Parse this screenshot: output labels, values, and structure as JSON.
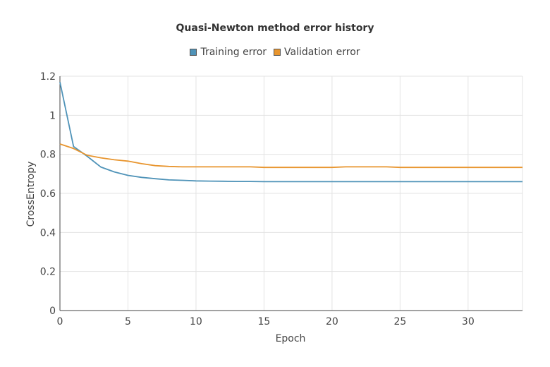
{
  "chart_data": {
    "type": "line",
    "title": "Quasi-Newton method error history",
    "xlabel": "Epoch",
    "ylabel": "CrossEntropy",
    "xlim": [
      0,
      34
    ],
    "ylim": [
      0,
      1.2
    ],
    "x_ticks": [
      "0",
      "5",
      "10",
      "15",
      "20",
      "25",
      "30"
    ],
    "y_ticks": [
      "0",
      "0.2",
      "0.4",
      "0.6",
      "0.8",
      "1",
      "1.2"
    ],
    "grid": true,
    "legend_position": "top-center",
    "series": [
      {
        "name": "Training error",
        "color": "#4f93b8",
        "x": [
          0,
          1,
          2,
          3,
          4,
          5,
          6,
          7,
          8,
          9,
          10,
          11,
          12,
          13,
          14,
          15,
          16,
          17,
          18,
          19,
          20,
          21,
          22,
          23,
          24,
          25,
          26,
          27,
          28,
          29,
          30,
          31,
          32,
          33,
          34
        ],
        "y": [
          1.17,
          0.84,
          0.79,
          0.735,
          0.71,
          0.692,
          0.682,
          0.675,
          0.669,
          0.667,
          0.664,
          0.663,
          0.662,
          0.661,
          0.661,
          0.66,
          0.66,
          0.66,
          0.66,
          0.66,
          0.66,
          0.66,
          0.66,
          0.66,
          0.66,
          0.66,
          0.66,
          0.66,
          0.66,
          0.66,
          0.66,
          0.66,
          0.66,
          0.66,
          0.66
        ]
      },
      {
        "name": "Validation error",
        "color": "#e8952e",
        "x": [
          0,
          1,
          2,
          3,
          4,
          5,
          6,
          7,
          8,
          9,
          10,
          11,
          12,
          13,
          14,
          15,
          16,
          17,
          18,
          19,
          20,
          21,
          22,
          23,
          24,
          25,
          26,
          27,
          28,
          29,
          30,
          31,
          32,
          33,
          34
        ],
        "y": [
          0.853,
          0.83,
          0.795,
          0.782,
          0.772,
          0.765,
          0.752,
          0.742,
          0.738,
          0.736,
          0.736,
          0.736,
          0.736,
          0.736,
          0.736,
          0.733,
          0.733,
          0.733,
          0.733,
          0.733,
          0.733,
          0.736,
          0.736,
          0.736,
          0.736,
          0.733,
          0.733,
          0.733,
          0.733,
          0.733,
          0.733,
          0.733,
          0.733,
          0.733,
          0.733
        ]
      }
    ]
  }
}
